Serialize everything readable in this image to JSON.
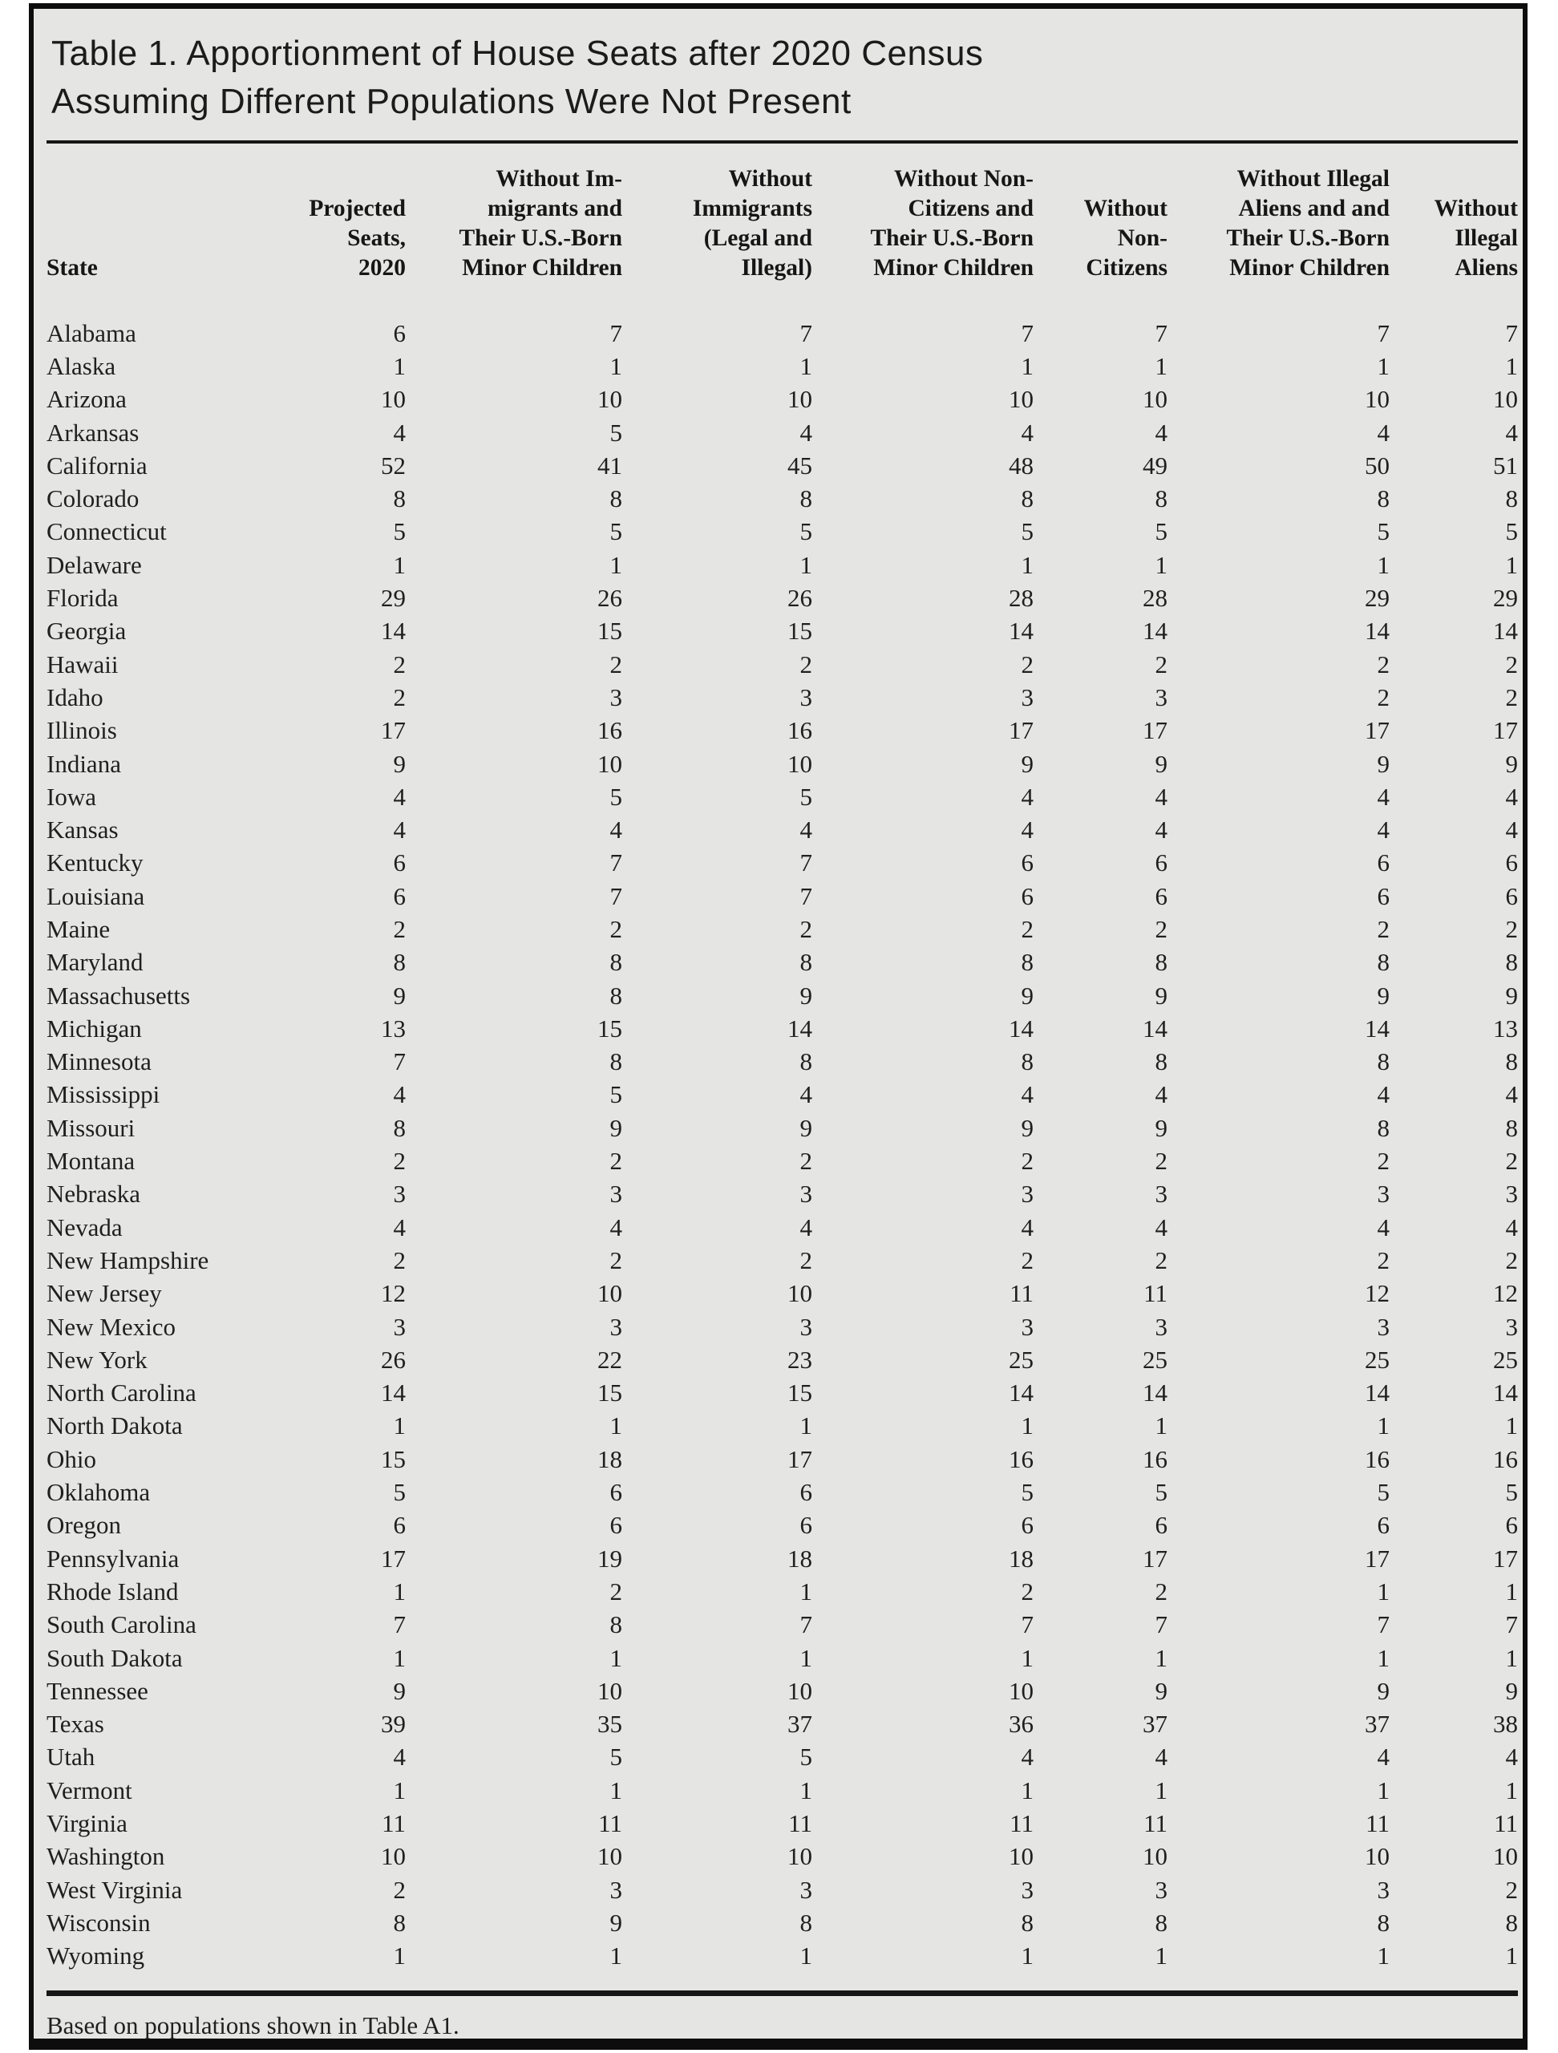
{
  "panel": {
    "title_line1": "Table 1. Apportionment of House Seats after 2020 Census",
    "title_line2": "Assuming Different Populations Were Not Present",
    "footnote": "Based on populations shown in Table A1."
  },
  "colors": {
    "panel_bg": "#e5e6e3",
    "frame_border": "#0d0d0d",
    "text": "#1d1d1d",
    "rule": "#161616"
  },
  "table": {
    "columns": [
      "State",
      "Projected\nSeats,\n2020",
      "Without Im-\nmigrants and\nTheir U.S.-Born\nMinor Children",
      "Without\nImmigrants\n(Legal and\nIllegal)",
      "Without Non-\nCitizens and\nTheir U.S.-Born\nMinor Children",
      "Without\nNon-\nCitizens",
      "Without Illegal\nAliens and and\nTheir U.S.-Born\nMinor Children",
      "Without\nIllegal\nAliens"
    ],
    "rows": [
      {
        "state": "Alabama",
        "values": [
          6,
          7,
          7,
          7,
          7,
          7,
          7
        ]
      },
      {
        "state": "Alaska",
        "values": [
          1,
          1,
          1,
          1,
          1,
          1,
          1
        ]
      },
      {
        "state": "Arizona",
        "values": [
          10,
          10,
          10,
          10,
          10,
          10,
          10
        ]
      },
      {
        "state": "Arkansas",
        "values": [
          4,
          5,
          4,
          4,
          4,
          4,
          4
        ]
      },
      {
        "state": "California",
        "values": [
          52,
          41,
          45,
          48,
          49,
          50,
          51
        ]
      },
      {
        "state": "Colorado",
        "values": [
          8,
          8,
          8,
          8,
          8,
          8,
          8
        ]
      },
      {
        "state": "Connecticut",
        "values": [
          5,
          5,
          5,
          5,
          5,
          5,
          5
        ]
      },
      {
        "state": "Delaware",
        "values": [
          1,
          1,
          1,
          1,
          1,
          1,
          1
        ]
      },
      {
        "state": "Florida",
        "values": [
          29,
          26,
          26,
          28,
          28,
          29,
          29
        ]
      },
      {
        "state": "Georgia",
        "values": [
          14,
          15,
          15,
          14,
          14,
          14,
          14
        ]
      },
      {
        "state": "Hawaii",
        "values": [
          2,
          2,
          2,
          2,
          2,
          2,
          2
        ]
      },
      {
        "state": "Idaho",
        "values": [
          2,
          3,
          3,
          3,
          3,
          2,
          2
        ]
      },
      {
        "state": "Illinois",
        "values": [
          17,
          16,
          16,
          17,
          17,
          17,
          17
        ]
      },
      {
        "state": "Indiana",
        "values": [
          9,
          10,
          10,
          9,
          9,
          9,
          9
        ]
      },
      {
        "state": "Iowa",
        "values": [
          4,
          5,
          5,
          4,
          4,
          4,
          4
        ]
      },
      {
        "state": "Kansas",
        "values": [
          4,
          4,
          4,
          4,
          4,
          4,
          4
        ]
      },
      {
        "state": "Kentucky",
        "values": [
          6,
          7,
          7,
          6,
          6,
          6,
          6
        ]
      },
      {
        "state": "Louisiana",
        "values": [
          6,
          7,
          7,
          6,
          6,
          6,
          6
        ]
      },
      {
        "state": "Maine",
        "values": [
          2,
          2,
          2,
          2,
          2,
          2,
          2
        ]
      },
      {
        "state": "Maryland",
        "values": [
          8,
          8,
          8,
          8,
          8,
          8,
          8
        ]
      },
      {
        "state": "Massachusetts",
        "values": [
          9,
          8,
          9,
          9,
          9,
          9,
          9
        ]
      },
      {
        "state": "Michigan",
        "values": [
          13,
          15,
          14,
          14,
          14,
          14,
          13
        ]
      },
      {
        "state": "Minnesota",
        "values": [
          7,
          8,
          8,
          8,
          8,
          8,
          8
        ]
      },
      {
        "state": "Mississippi",
        "values": [
          4,
          5,
          4,
          4,
          4,
          4,
          4
        ]
      },
      {
        "state": "Missouri",
        "values": [
          8,
          9,
          9,
          9,
          9,
          8,
          8
        ]
      },
      {
        "state": "Montana",
        "values": [
          2,
          2,
          2,
          2,
          2,
          2,
          2
        ]
      },
      {
        "state": "Nebraska",
        "values": [
          3,
          3,
          3,
          3,
          3,
          3,
          3
        ]
      },
      {
        "state": "Nevada",
        "values": [
          4,
          4,
          4,
          4,
          4,
          4,
          4
        ]
      },
      {
        "state": "New Hampshire",
        "values": [
          2,
          2,
          2,
          2,
          2,
          2,
          2
        ]
      },
      {
        "state": "New Jersey",
        "values": [
          12,
          10,
          10,
          11,
          11,
          12,
          12
        ]
      },
      {
        "state": "New Mexico",
        "values": [
          3,
          3,
          3,
          3,
          3,
          3,
          3
        ]
      },
      {
        "state": "New York",
        "values": [
          26,
          22,
          23,
          25,
          25,
          25,
          25
        ]
      },
      {
        "state": "North Carolina",
        "values": [
          14,
          15,
          15,
          14,
          14,
          14,
          14
        ]
      },
      {
        "state": "North Dakota",
        "values": [
          1,
          1,
          1,
          1,
          1,
          1,
          1
        ]
      },
      {
        "state": "Ohio",
        "values": [
          15,
          18,
          17,
          16,
          16,
          16,
          16
        ]
      },
      {
        "state": "Oklahoma",
        "values": [
          5,
          6,
          6,
          5,
          5,
          5,
          5
        ]
      },
      {
        "state": "Oregon",
        "values": [
          6,
          6,
          6,
          6,
          6,
          6,
          6
        ]
      },
      {
        "state": "Pennsylvania",
        "values": [
          17,
          19,
          18,
          18,
          17,
          17,
          17
        ]
      },
      {
        "state": "Rhode Island",
        "values": [
          1,
          2,
          1,
          2,
          2,
          1,
          1
        ]
      },
      {
        "state": "South Carolina",
        "values": [
          7,
          8,
          7,
          7,
          7,
          7,
          7
        ]
      },
      {
        "state": "South Dakota",
        "values": [
          1,
          1,
          1,
          1,
          1,
          1,
          1
        ]
      },
      {
        "state": "Tennessee",
        "values": [
          9,
          10,
          10,
          10,
          9,
          9,
          9
        ]
      },
      {
        "state": "Texas",
        "values": [
          39,
          35,
          37,
          36,
          37,
          37,
          38
        ]
      },
      {
        "state": "Utah",
        "values": [
          4,
          5,
          5,
          4,
          4,
          4,
          4
        ]
      },
      {
        "state": "Vermont",
        "values": [
          1,
          1,
          1,
          1,
          1,
          1,
          1
        ]
      },
      {
        "state": "Virginia",
        "values": [
          11,
          11,
          11,
          11,
          11,
          11,
          11
        ]
      },
      {
        "state": "Washington",
        "values": [
          10,
          10,
          10,
          10,
          10,
          10,
          10
        ]
      },
      {
        "state": "West Virginia",
        "values": [
          2,
          3,
          3,
          3,
          3,
          3,
          2
        ]
      },
      {
        "state": "Wisconsin",
        "values": [
          8,
          9,
          8,
          8,
          8,
          8,
          8
        ]
      },
      {
        "state": "Wyoming",
        "values": [
          1,
          1,
          1,
          1,
          1,
          1,
          1
        ]
      }
    ]
  }
}
